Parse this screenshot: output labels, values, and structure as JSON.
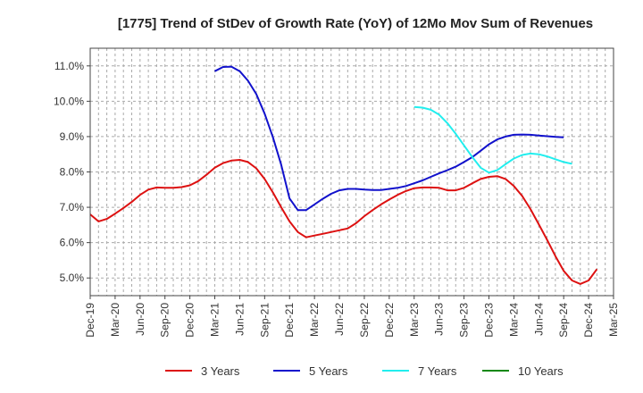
{
  "chart_data": {
    "type": "line",
    "title": "[1775]  Trend of StDev of Growth Rate (YoY) of 12Mo Mov Sum of Revenues",
    "xlabel": "",
    "ylabel": "",
    "ylim": [
      4.5,
      11.5
    ],
    "yticks": [
      5.0,
      6.0,
      7.0,
      8.0,
      9.0,
      10.0,
      11.0
    ],
    "ytick_labels": [
      "5.0%",
      "6.0%",
      "7.0%",
      "8.0%",
      "9.0%",
      "10.0%",
      "11.0%"
    ],
    "x_start": "Dec-19",
    "x_tick_labels": [
      "Dec-19",
      "Mar-20",
      "Jun-20",
      "Sep-20",
      "Dec-20",
      "Mar-21",
      "Jun-21",
      "Sep-21",
      "Dec-21",
      "Mar-22",
      "Jun-22",
      "Sep-22",
      "Dec-22",
      "Mar-23",
      "Jun-23",
      "Sep-23",
      "Dec-23",
      "Mar-24",
      "Jun-24",
      "Sep-24",
      "Dec-24",
      "Mar-25"
    ],
    "x_months_span": 63,
    "grid": true,
    "legend_position": "bottom",
    "series": [
      {
        "name": "3 Years",
        "color": "#dd1111",
        "start_month": 0,
        "values": [
          6.8,
          6.6,
          6.67,
          6.82,
          6.98,
          7.15,
          7.35,
          7.5,
          7.56,
          7.55,
          7.55,
          7.57,
          7.62,
          7.74,
          7.92,
          8.12,
          8.25,
          8.32,
          8.34,
          8.28,
          8.1,
          7.8,
          7.42,
          7.0,
          6.6,
          6.3,
          6.15,
          6.2,
          6.25,
          6.3,
          6.35,
          6.4,
          6.55,
          6.75,
          6.92,
          7.08,
          7.22,
          7.35,
          7.46,
          7.54,
          7.56,
          7.56,
          7.55,
          7.48,
          7.48,
          7.55,
          7.68,
          7.8,
          7.86,
          7.88,
          7.8,
          7.6,
          7.32,
          6.95,
          6.52,
          6.08,
          5.62,
          5.2,
          4.93,
          4.83,
          4.93,
          5.25
        ]
      },
      {
        "name": "5 Years",
        "color": "#1111cc",
        "start_month": 15,
        "values": [
          10.85,
          10.97,
          10.98,
          10.85,
          10.58,
          10.2,
          9.65,
          8.98,
          8.2,
          7.25,
          6.92,
          6.92,
          7.08,
          7.24,
          7.38,
          7.48,
          7.52,
          7.52,
          7.5,
          7.49,
          7.49,
          7.52,
          7.55,
          7.6,
          7.68,
          7.76,
          7.86,
          7.96,
          8.05,
          8.15,
          8.28,
          8.42,
          8.6,
          8.78,
          8.92,
          9.0,
          9.05,
          9.06,
          9.05,
          9.03,
          9.01,
          8.99,
          8.98
        ]
      },
      {
        "name": "7 Years",
        "color": "#22eeee",
        "start_month": 39,
        "values": [
          9.84,
          9.82,
          9.76,
          9.62,
          9.38,
          9.08,
          8.75,
          8.42,
          8.12,
          7.98,
          8.05,
          8.22,
          8.38,
          8.48,
          8.52,
          8.5,
          8.44,
          8.36,
          8.28,
          8.23
        ]
      },
      {
        "name": "10 Years",
        "color": "#118811",
        "start_month": 0,
        "values": []
      }
    ]
  }
}
